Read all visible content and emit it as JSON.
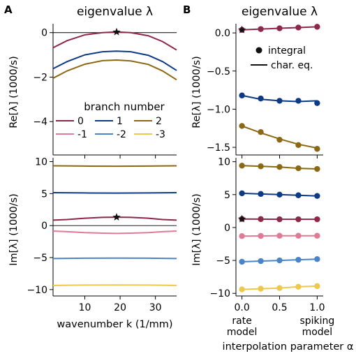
{
  "figure": {
    "panel_a_letter": "A",
    "panel_b_letter": "B"
  },
  "chart_data": [
    {
      "id": "A-top",
      "type": "line",
      "title": "eigenvalue λ",
      "ylabel": "Re[λ] (1000/s)",
      "xlabel": "",
      "xlim": [
        1,
        36
      ],
      "ylim": [
        -5.5,
        0.4
      ],
      "yticks": [
        0,
        -2,
        -4
      ],
      "ytick_labels": [
        "0",
        "−2",
        "−4"
      ],
      "xticks": [
        10,
        20,
        30
      ],
      "show_xtick_labels": false,
      "reference_line_y": 0,
      "series": [
        {
          "name": "0",
          "color": "#8c2848",
          "x": [
            1,
            5,
            10,
            15,
            19,
            23,
            28,
            32,
            36
          ],
          "y": [
            -0.68,
            -0.36,
            -0.1,
            0.0,
            0.03,
            0.0,
            -0.14,
            -0.4,
            -0.78
          ]
        },
        {
          "name": "1",
          "color": "#0d3a85",
          "x": [
            1,
            5,
            10,
            15,
            19,
            23,
            28,
            32,
            36
          ],
          "y": [
            -1.62,
            -1.3,
            -1.0,
            -0.86,
            -0.83,
            -0.86,
            -1.02,
            -1.3,
            -1.7
          ]
        },
        {
          "name": "2",
          "color": "#8b6914",
          "x": [
            1,
            5,
            10,
            15,
            19,
            23,
            28,
            32,
            36
          ],
          "y": [
            -2.05,
            -1.72,
            -1.42,
            -1.26,
            -1.23,
            -1.27,
            -1.43,
            -1.72,
            -2.12
          ]
        }
      ],
      "markers": [
        {
          "x": 19,
          "y": 0.03,
          "symbol": "star"
        }
      ],
      "legend": {
        "title": "branch number",
        "placement": "lower-left",
        "entries": [
          {
            "label": "0",
            "color": "#8c2848"
          },
          {
            "label": "1",
            "color": "#0d3a85"
          },
          {
            "label": "2",
            "color": "#8b6914"
          },
          {
            "label": "-1",
            "color": "#e07a96"
          },
          {
            "label": "-2",
            "color": "#4a84c8"
          },
          {
            "label": "-3",
            "color": "#ecc84c"
          }
        ]
      }
    },
    {
      "id": "A-bottom",
      "type": "line",
      "xlabel": "wavenumber k (1/mm)",
      "ylabel": "Im[λ] (1000/s)",
      "xlim": [
        1,
        36
      ],
      "ylim": [
        -11,
        10.6
      ],
      "yticks": [
        10,
        5,
        0,
        -5,
        -10
      ],
      "ytick_labels": [
        "10",
        "5",
        "0",
        "−5",
        "−10"
      ],
      "xticks": [
        10,
        20,
        30
      ],
      "xtick_labels": [
        "10",
        "20",
        "30"
      ],
      "reference_line_y": 0,
      "series": [
        {
          "name": "2",
          "color": "#8b6914",
          "x": [
            1,
            10,
            19,
            28,
            36
          ],
          "y": [
            9.35,
            9.3,
            9.28,
            9.3,
            9.35
          ]
        },
        {
          "name": "1",
          "color": "#0d3a85",
          "x": [
            1,
            10,
            19,
            28,
            36
          ],
          "y": [
            5.15,
            5.1,
            5.08,
            5.1,
            5.15
          ]
        },
        {
          "name": "0",
          "color": "#8c2848",
          "x": [
            1,
            5,
            10,
            15,
            19,
            23,
            28,
            32,
            36
          ],
          "y": [
            0.85,
            0.95,
            1.15,
            1.28,
            1.32,
            1.28,
            1.15,
            0.95,
            0.85
          ]
        },
        {
          "name": "-1",
          "color": "#e07a96",
          "x": [
            1,
            5,
            10,
            15,
            19,
            23,
            28,
            32,
            36
          ],
          "y": [
            -0.85,
            -0.95,
            -1.1,
            -1.18,
            -1.22,
            -1.18,
            -1.1,
            -0.95,
            -0.85
          ]
        },
        {
          "name": "-2",
          "color": "#4a84c8",
          "x": [
            1,
            10,
            19,
            28,
            36
          ],
          "y": [
            -5.15,
            -5.1,
            -5.08,
            -5.1,
            -5.15
          ]
        },
        {
          "name": "-3",
          "color": "#ecc84c",
          "x": [
            1,
            10,
            19,
            28,
            36
          ],
          "y": [
            -9.35,
            -9.3,
            -9.28,
            -9.3,
            -9.35
          ]
        }
      ],
      "markers": [
        {
          "x": 19,
          "y": 1.32,
          "symbol": "star"
        }
      ]
    },
    {
      "id": "B-top",
      "type": "line",
      "title": "eigenvalue λ",
      "ylabel": "Re[λ] (1000/s)",
      "xlabel": "",
      "xlim": [
        -0.08,
        1.08
      ],
      "ylim": [
        -1.6,
        0.12
      ],
      "yticks": [
        0.0,
        -0.5,
        -1.0,
        -1.5
      ],
      "ytick_labels": [
        "0.0",
        "−0.5",
        "−1.0",
        "−1.5"
      ],
      "xticks": [
        0.0,
        0.5,
        1.0
      ],
      "show_xtick_labels": false,
      "series": [
        {
          "name": "0",
          "color": "#8c2848",
          "x": [
            0.0,
            0.25,
            0.5,
            0.75,
            1.0
          ],
          "y": [
            0.04,
            0.05,
            0.06,
            0.07,
            0.08
          ],
          "line_y": [
            0.04,
            0.05,
            0.06,
            0.07,
            0.08
          ]
        },
        {
          "name": "1",
          "color": "#0d3a85",
          "x": [
            0.0,
            0.25,
            0.5,
            0.75,
            1.0
          ],
          "y": [
            -0.82,
            -0.86,
            -0.89,
            -0.89,
            -0.92
          ],
          "line_y": [
            -0.82,
            -0.87,
            -0.89,
            -0.9,
            -0.89
          ]
        },
        {
          "name": "2",
          "color": "#8b6914",
          "x": [
            0.0,
            0.25,
            0.5,
            0.75,
            1.0
          ],
          "y": [
            -1.22,
            -1.3,
            -1.4,
            -1.47,
            -1.52
          ],
          "line_y": [
            -1.22,
            -1.31,
            -1.39,
            -1.46,
            -1.51
          ]
        }
      ],
      "markers": [
        {
          "x": 0.0,
          "y": 0.04,
          "symbol": "star"
        }
      ],
      "legend": {
        "placement": "upper-right",
        "entries": [
          {
            "label": "integral",
            "symbol": "dot"
          },
          {
            "label": "char. eq.",
            "symbol": "line"
          }
        ]
      }
    },
    {
      "id": "B-bottom",
      "type": "line",
      "xlabel": "interpolation parameter α",
      "ylabel": "Im[λ] (1000/s)",
      "xlim": [
        -0.08,
        1.08
      ],
      "ylim": [
        -10.4,
        10.6
      ],
      "yticks": [
        10,
        5,
        0,
        -5,
        -10
      ],
      "ytick_labels": [
        "10",
        "5",
        "0",
        "−5",
        "−10"
      ],
      "xticks": [
        0.0,
        0.5,
        1.0
      ],
      "xtick_labels": [
        "0.0",
        "0.5",
        "1.0"
      ],
      "x_annotations": [
        "rate\nmodel",
        "spiking\nmodel"
      ],
      "series": [
        {
          "name": "2",
          "color": "#8b6914",
          "x": [
            0.0,
            0.25,
            0.5,
            0.75,
            1.0
          ],
          "y": [
            9.4,
            9.3,
            9.2,
            9.0,
            8.9
          ]
        },
        {
          "name": "1",
          "color": "#0d3a85",
          "x": [
            0.0,
            0.25,
            0.5,
            0.75,
            1.0
          ],
          "y": [
            5.2,
            5.1,
            5.0,
            4.9,
            4.8
          ]
        },
        {
          "name": "0",
          "color": "#8c2848",
          "x": [
            0.0,
            0.25,
            0.5,
            0.75,
            1.0
          ],
          "y": [
            1.3,
            1.28,
            1.25,
            1.25,
            1.25
          ]
        },
        {
          "name": "-1",
          "color": "#e07a96",
          "x": [
            0.0,
            0.25,
            0.5,
            0.75,
            1.0
          ],
          "y": [
            -1.3,
            -1.28,
            -1.25,
            -1.25,
            -1.25
          ]
        },
        {
          "name": "-2",
          "color": "#4a84c8",
          "x": [
            0.0,
            0.25,
            0.5,
            0.75,
            1.0
          ],
          "y": [
            -5.2,
            -5.1,
            -5.0,
            -4.9,
            -4.8
          ]
        },
        {
          "name": "-3",
          "color": "#ecc84c",
          "x": [
            0.0,
            0.25,
            0.5,
            0.75,
            1.0
          ],
          "y": [
            -9.4,
            -9.3,
            -9.2,
            -9.0,
            -8.9
          ]
        }
      ],
      "markers": [
        {
          "x": 0.0,
          "y": 1.3,
          "symbol": "star"
        }
      ]
    }
  ]
}
